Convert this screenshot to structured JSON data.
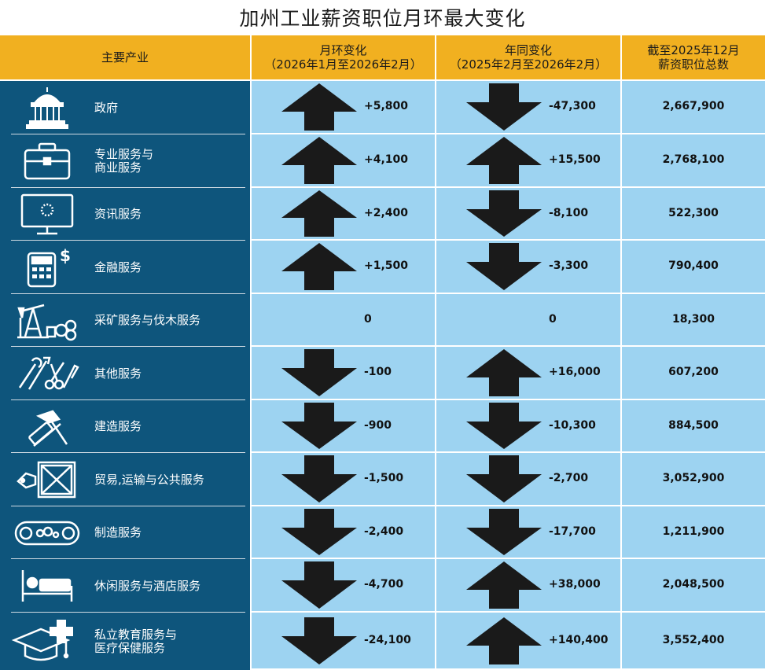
{
  "title": "加州工业薪资职位月环最大变化",
  "headers": {
    "industry": "主要产业",
    "mom_line1": "月环变化",
    "mom_line2": "（2026年1月至2026年2月）",
    "yoy_line1": "年同变化",
    "yoy_line2": "（2025年2月至2026年2月）",
    "total_line1": "截至2025年12月",
    "total_line2": "薪资职位总数"
  },
  "chart_data": {
    "type": "table",
    "columns": [
      "主要产业",
      "月环变化",
      "年同变化",
      "截至2025年12月 薪资职位总数"
    ],
    "rows": [
      {
        "icon": "capitol-icon",
        "label1": "政府",
        "label2": "",
        "mom": 5800,
        "mom_text": "+5,800",
        "yoy": -47300,
        "yoy_text": "-47,300",
        "total": 2667900,
        "total_text": "2,667,900"
      },
      {
        "icon": "briefcase-icon",
        "label1": "专业服务与",
        "label2": "商业服务",
        "mom": 4100,
        "mom_text": "+4,100",
        "yoy": 15500,
        "yoy_text": "+15,500",
        "total": 2768100,
        "total_text": "2,768,100"
      },
      {
        "icon": "monitor-icon",
        "label1": "资讯服务",
        "label2": "",
        "mom": 2400,
        "mom_text": "+2,400",
        "yoy": -8100,
        "yoy_text": "-8,100",
        "total": 522300,
        "total_text": "522,300"
      },
      {
        "icon": "calculator-icon",
        "label1": "金融服务",
        "label2": "",
        "mom": 1500,
        "mom_text": "+1,500",
        "yoy": -3300,
        "yoy_text": "-3,300",
        "total": 790400,
        "total_text": "790,400"
      },
      {
        "icon": "oil-pump-icon",
        "label1": "采矿服务与伐木服务",
        "label2": "",
        "mom": 0,
        "mom_text": "0",
        "yoy": 0,
        "yoy_text": "0",
        "total": 18300,
        "total_text": "18,300"
      },
      {
        "icon": "tools-icon",
        "label1": "其他服务",
        "label2": "",
        "mom": -100,
        "mom_text": "-100",
        "yoy": 16000,
        "yoy_text": "+16,000",
        "total": 607200,
        "total_text": "607,200"
      },
      {
        "icon": "hammer-icon",
        "label1": "建造服务",
        "label2": "",
        "mom": -900,
        "mom_text": "-900",
        "yoy": -10300,
        "yoy_text": "-10,300",
        "total": 884500,
        "total_text": "884,500"
      },
      {
        "icon": "crate-icon",
        "label1": "贸易,运输与公共服务",
        "label2": "",
        "mom": -1500,
        "mom_text": "-1,500",
        "yoy": -2700,
        "yoy_text": "-2,700",
        "total": 3052900,
        "total_text": "3,052,900"
      },
      {
        "icon": "conveyor-icon",
        "label1": "制造服务",
        "label2": "",
        "mom": -2400,
        "mom_text": "-2,400",
        "yoy": -17700,
        "yoy_text": "-17,700",
        "total": 1211900,
        "total_text": "1,211,900"
      },
      {
        "icon": "bed-icon",
        "label1": "休闲服务与酒店服务",
        "label2": "",
        "mom": -4700,
        "mom_text": "-4,700",
        "yoy": 38000,
        "yoy_text": "+38,000",
        "total": 2048500,
        "total_text": "2,048,500"
      },
      {
        "icon": "graduation-cap-icon",
        "label1": "私立教育服务与",
        "label2": "医疗保健服务",
        "mom": -24100,
        "mom_text": "-24,100",
        "yoy": 140400,
        "yoy_text": "+140,400",
        "total": 3552400,
        "total_text": "3,552,400"
      }
    ]
  }
}
